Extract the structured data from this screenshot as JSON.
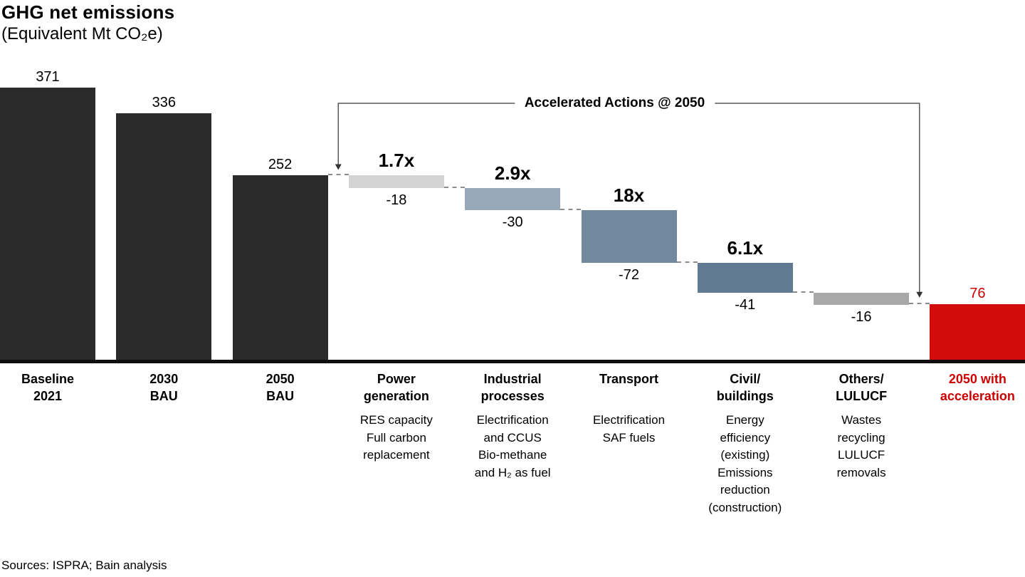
{
  "header": {
    "title": "GHG net emissions",
    "subtitle": "(Equivalent Mt CO₂e)"
  },
  "footer": {
    "sources": "Sources: ISPRA; Bain analysis"
  },
  "colors": {
    "dark_bar": "#2b2b2b",
    "accent_red_bar": "#d20b0b",
    "accent_red_text": "#cc0000",
    "axis": "#0d0d0d",
    "connector_gray": "#8c8c8c",
    "bracket_line": "#595959"
  },
  "chart_data": {
    "type": "waterfall",
    "title": "GHG net emissions",
    "subtitle": "(Equivalent Mt CO₂e)",
    "unit": "Mt CO₂e",
    "value_axis": {
      "min": 0,
      "max": 371,
      "gridlines": false,
      "visible": false
    },
    "bracket": {
      "label": "Accelerated Actions @ 2050",
      "from_column_index": 3,
      "to_column_index": 8
    },
    "columns": [
      {
        "id": "baseline-2021",
        "category_lines": [
          "Baseline",
          "2021"
        ],
        "sub_lines": [],
        "bar_type": "absolute",
        "value": 371,
        "value_label": "371",
        "color": "#2b2b2b",
        "value_label_color": "#000000",
        "category_color": "#000000"
      },
      {
        "id": "2030-bau",
        "category_lines": [
          "2030",
          "BAU"
        ],
        "sub_lines": [],
        "bar_type": "absolute",
        "value": 336,
        "value_label": "336",
        "color": "#2b2b2b",
        "value_label_color": "#000000",
        "category_color": "#000000"
      },
      {
        "id": "2050-bau",
        "category_lines": [
          "2050",
          "BAU"
        ],
        "sub_lines": [],
        "bar_type": "absolute",
        "value": 252,
        "value_label": "252",
        "color": "#2b2b2b",
        "value_label_color": "#000000",
        "category_color": "#000000"
      },
      {
        "id": "power-generation",
        "category_lines": [
          "Power",
          "generation"
        ],
        "sub_lines": [
          "RES capacity",
          "Full carbon",
          "replacement"
        ],
        "bar_type": "delta",
        "value": -18,
        "value_label": "-18",
        "multiplier": "1.7x",
        "color": "#d4d4d4",
        "value_label_color": "#000000",
        "category_color": "#000000"
      },
      {
        "id": "industrial-processes",
        "category_lines": [
          "Industrial",
          "processes"
        ],
        "sub_lines": [
          "Electrification",
          "and CCUS",
          "Bio-methane",
          "and H₂ as fuel"
        ],
        "bar_type": "delta",
        "value": -30,
        "value_label": "-30",
        "multiplier": "2.9x",
        "color": "#97a9b8",
        "value_label_color": "#000000",
        "category_color": "#000000"
      },
      {
        "id": "transport",
        "category_lines": [
          "Transport"
        ],
        "sub_lines": [
          "Electrification",
          "SAF fuels"
        ],
        "bar_type": "delta",
        "value": -72,
        "value_label": "-72",
        "multiplier": "18x",
        "color": "#73899e",
        "value_label_color": "#000000",
        "category_color": "#000000"
      },
      {
        "id": "civil-buildings",
        "category_lines": [
          "Civil/",
          "buildings"
        ],
        "sub_lines": [
          "Energy",
          "efficiency",
          "(existing)",
          "Emissions",
          "reduction",
          "(construction)"
        ],
        "bar_type": "delta",
        "value": -41,
        "value_label": "-41",
        "multiplier": "6.1x",
        "color": "#5f7a91",
        "value_label_color": "#000000",
        "category_color": "#000000"
      },
      {
        "id": "others-lulucf",
        "category_lines": [
          "Others/",
          "LULUCF"
        ],
        "sub_lines": [
          "Wastes",
          "recycling",
          "LULUCF",
          "removals"
        ],
        "bar_type": "delta",
        "value": -16,
        "value_label": "-16",
        "multiplier": "",
        "color": "#a8a8a8",
        "value_label_color": "#000000",
        "category_color": "#000000"
      },
      {
        "id": "2050-with-acceleration",
        "category_lines": [
          "2050 with",
          "acceleration"
        ],
        "sub_lines": [],
        "bar_type": "total",
        "value": 76,
        "value_label": "76",
        "color": "#d20b0b",
        "value_label_color": "#cc0000",
        "category_color": "#cc0000"
      }
    ]
  }
}
